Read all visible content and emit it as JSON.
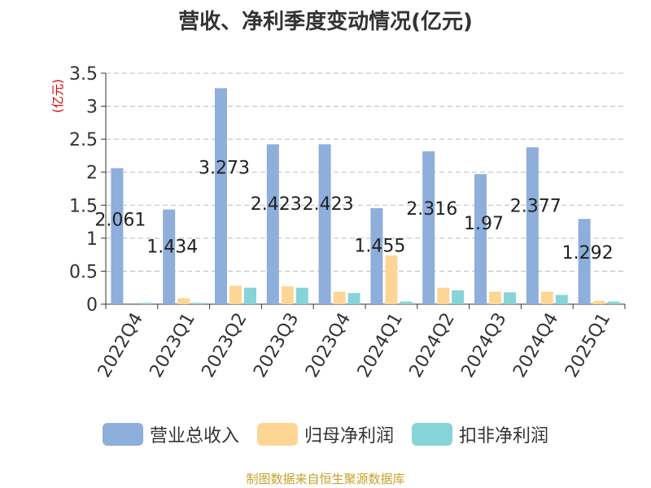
{
  "chart_data": {
    "type": "bar",
    "title": "营收、净利季度变动情况(亿元)",
    "ylabel": "(亿元)",
    "xlabel": "",
    "ylim": [
      0,
      3.5
    ],
    "yticks": [
      "0",
      "0.5",
      "1",
      "1.5",
      "2",
      "2.5",
      "3",
      "3.5"
    ],
    "grid": true,
    "legend_position": "bottom",
    "categories": [
      "2022Q4",
      "2023Q1",
      "2023Q2",
      "2023Q3",
      "2023Q4",
      "2024Q1",
      "2024Q2",
      "2024Q3",
      "2024Q4",
      "2025Q1"
    ],
    "series": [
      {
        "name": "营业总收入",
        "color": "#8eaedb",
        "values": [
          2.061,
          1.434,
          3.273,
          2.423,
          2.423,
          1.455,
          2.316,
          1.97,
          2.377,
          1.292
        ],
        "labels": [
          "2.061",
          "1.434",
          "3.273",
          "2.423",
          "2.423",
          "1.455",
          "2.316",
          "1.97",
          "2.377",
          "1.292"
        ]
      },
      {
        "name": "归母净利润",
        "color": "#fdd696",
        "values": [
          0.0,
          0.09,
          0.28,
          0.27,
          0.19,
          0.74,
          0.25,
          0.19,
          0.19,
          0.05
        ]
      },
      {
        "name": "扣非净利润",
        "color": "#87d4d8",
        "values": [
          0.02,
          0.02,
          0.25,
          0.25,
          0.17,
          0.04,
          0.21,
          0.18,
          0.14,
          0.04
        ]
      }
    ]
  },
  "footer": "制图数据来自恒生聚源数据库"
}
